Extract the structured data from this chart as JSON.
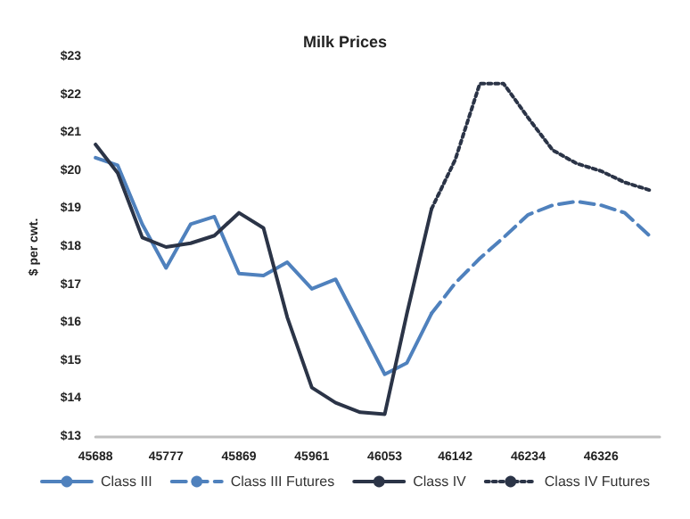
{
  "chart_data": {
    "type": "line",
    "title": "Milk Prices",
    "ylabel": "$ per cwt.",
    "x": [
      45688,
      45716,
      45747,
      45777,
      45808,
      45838,
      45869,
      45900,
      45930,
      45961,
      45991,
      46022,
      46053,
      46081,
      46112,
      46142,
      46173,
      46203,
      46234,
      46265,
      46295,
      46326,
      46356,
      46387
    ],
    "series": [
      {
        "name": "Class III",
        "color": "#4f81bd",
        "line_style": "solid",
        "values": [
          20.35,
          20.15,
          18.6,
          17.45,
          18.6,
          18.8,
          17.3,
          17.25,
          17.6,
          16.9,
          17.15,
          15.9,
          14.65,
          14.95,
          16.25,
          null,
          null,
          null,
          null,
          null,
          null,
          null,
          null,
          null
        ]
      },
      {
        "name": "Class III Futures",
        "color": "#4f81bd",
        "line_style": "dashed",
        "values": [
          null,
          null,
          null,
          null,
          null,
          null,
          null,
          null,
          null,
          null,
          null,
          null,
          null,
          null,
          16.25,
          17.05,
          17.7,
          18.25,
          18.85,
          19.1,
          19.2,
          19.1,
          18.9,
          18.3
        ]
      },
      {
        "name": "Class IV",
        "color": "#2b3447",
        "line_style": "solid",
        "values": [
          20.7,
          19.95,
          18.25,
          18.0,
          18.1,
          18.3,
          18.9,
          18.5,
          16.15,
          14.3,
          13.9,
          13.65,
          13.6,
          16.25,
          19.0,
          null,
          null,
          null,
          null,
          null,
          null,
          null,
          null,
          null
        ]
      },
      {
        "name": "Class IV Futures",
        "color": "#2b3447",
        "line_style": "dotted",
        "values": [
          null,
          null,
          null,
          null,
          null,
          null,
          null,
          null,
          null,
          null,
          null,
          null,
          null,
          null,
          19.0,
          20.3,
          22.3,
          22.3,
          21.4,
          20.55,
          20.2,
          20.0,
          19.7,
          19.5
        ]
      }
    ],
    "xlim": [
      45688,
      46400
    ],
    "xticks": [
      45688,
      45777,
      45869,
      45961,
      46053,
      46142,
      46234,
      46326
    ],
    "ylim": [
      13,
      23
    ],
    "yticks": [
      {
        "value": 13,
        "label": "$13"
      },
      {
        "value": 14,
        "label": "$14"
      },
      {
        "value": 15,
        "label": "$15"
      },
      {
        "value": 16,
        "label": "$16"
      },
      {
        "value": 17,
        "label": "$17"
      },
      {
        "value": 18,
        "label": "$18"
      },
      {
        "value": 19,
        "label": "$19"
      },
      {
        "value": 20,
        "label": "$20"
      },
      {
        "value": 21,
        "label": "$21"
      },
      {
        "value": 22,
        "label": "$22"
      },
      {
        "value": 23,
        "label": "$23"
      }
    ],
    "grid": false,
    "legend": "bottom",
    "marker": "none"
  }
}
